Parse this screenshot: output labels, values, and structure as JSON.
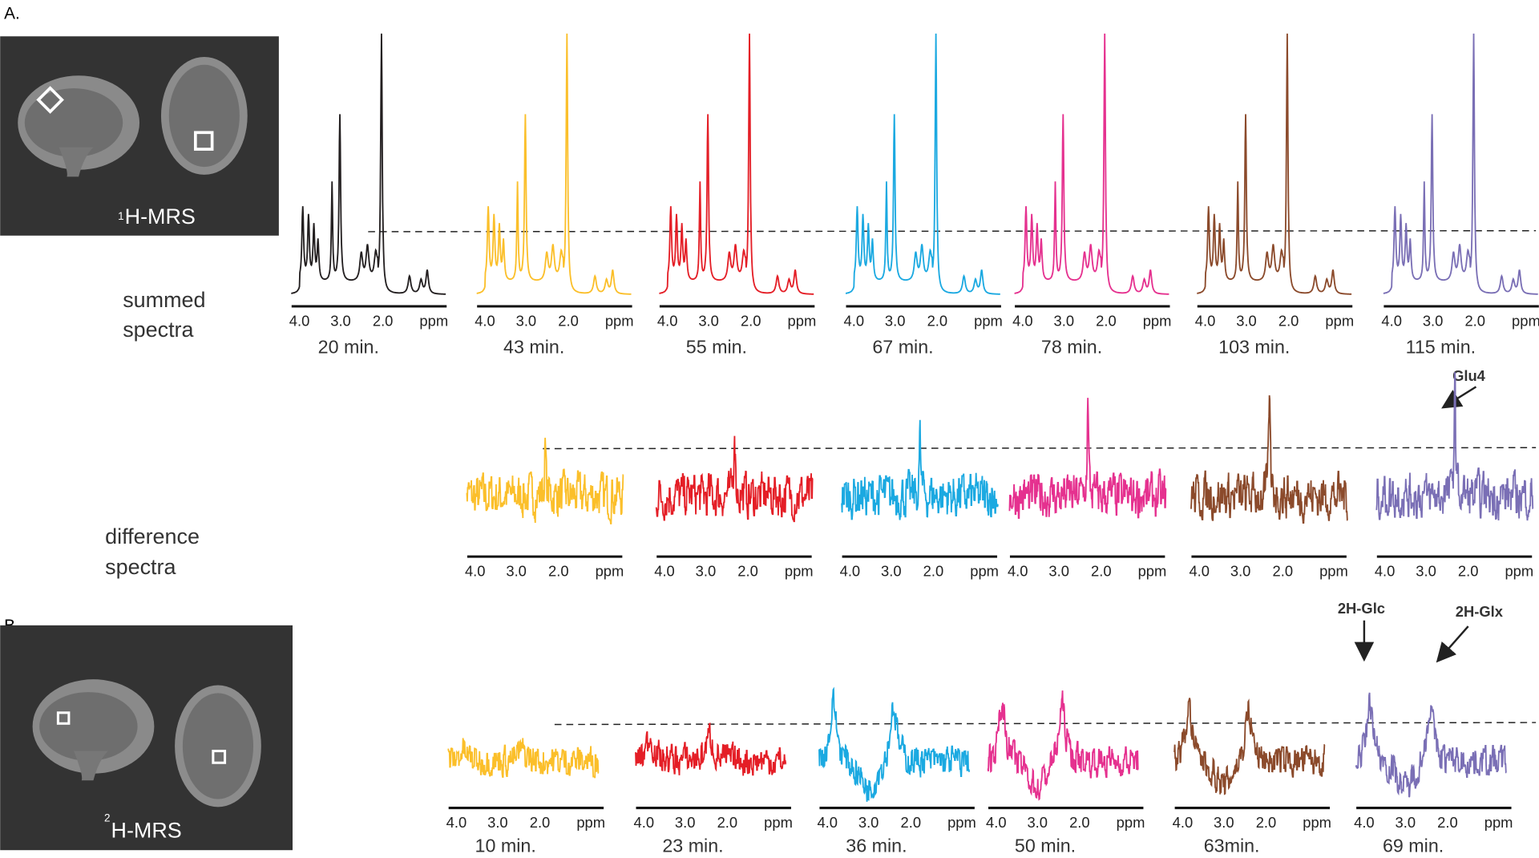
{
  "panel_a": {
    "label": "A.",
    "image": {
      "isotope": "1",
      "nucleus_label": "H-MRS"
    },
    "summed_label": [
      "summed",
      "spectra"
    ],
    "difference_label": [
      "difference",
      "spectra"
    ],
    "summed_spectra": [
      {
        "time": "20 min.",
        "color": "#231f20"
      },
      {
        "time": "43 min.",
        "color": "#fbbf2a"
      },
      {
        "time": "55 min.",
        "color": "#e41e26"
      },
      {
        "time": "67 min.",
        "color": "#1ba9e1"
      },
      {
        "time": "78 min.",
        "color": "#e5318f"
      },
      {
        "time": "103 min.",
        "color": "#8b4a2b"
      },
      {
        "time": "115 min.",
        "color": "#7a6fb5"
      }
    ],
    "difference_spectra": [
      {
        "color": "#fbbf2a"
      },
      {
        "color": "#e41e26"
      },
      {
        "color": "#1ba9e1"
      },
      {
        "color": "#e5318f"
      },
      {
        "color": "#8b4a2b"
      },
      {
        "color": "#7a6fb5"
      }
    ],
    "annotation": "Glu4"
  },
  "axis_ticks": [
    "4.0",
    "3.0",
    "2.0",
    "ppm"
  ],
  "panel_b": {
    "label": "B.",
    "image": {
      "isotope": "2",
      "nucleus_label": "H-MRS"
    },
    "spectra": [
      {
        "time": "10 min.",
        "color": "#fbbf2a"
      },
      {
        "time": "23 min.",
        "color": "#e41e26"
      },
      {
        "time": "36 min.",
        "color": "#1ba9e1"
      },
      {
        "time": "50 min.",
        "color": "#e5318f"
      },
      {
        "time": "63min.",
        "color": "#8b4a2b"
      },
      {
        "time": "69 min.",
        "color": "#7a6fb5"
      }
    ],
    "annotations": [
      "2H-Glc",
      "2H-Glx"
    ]
  }
}
